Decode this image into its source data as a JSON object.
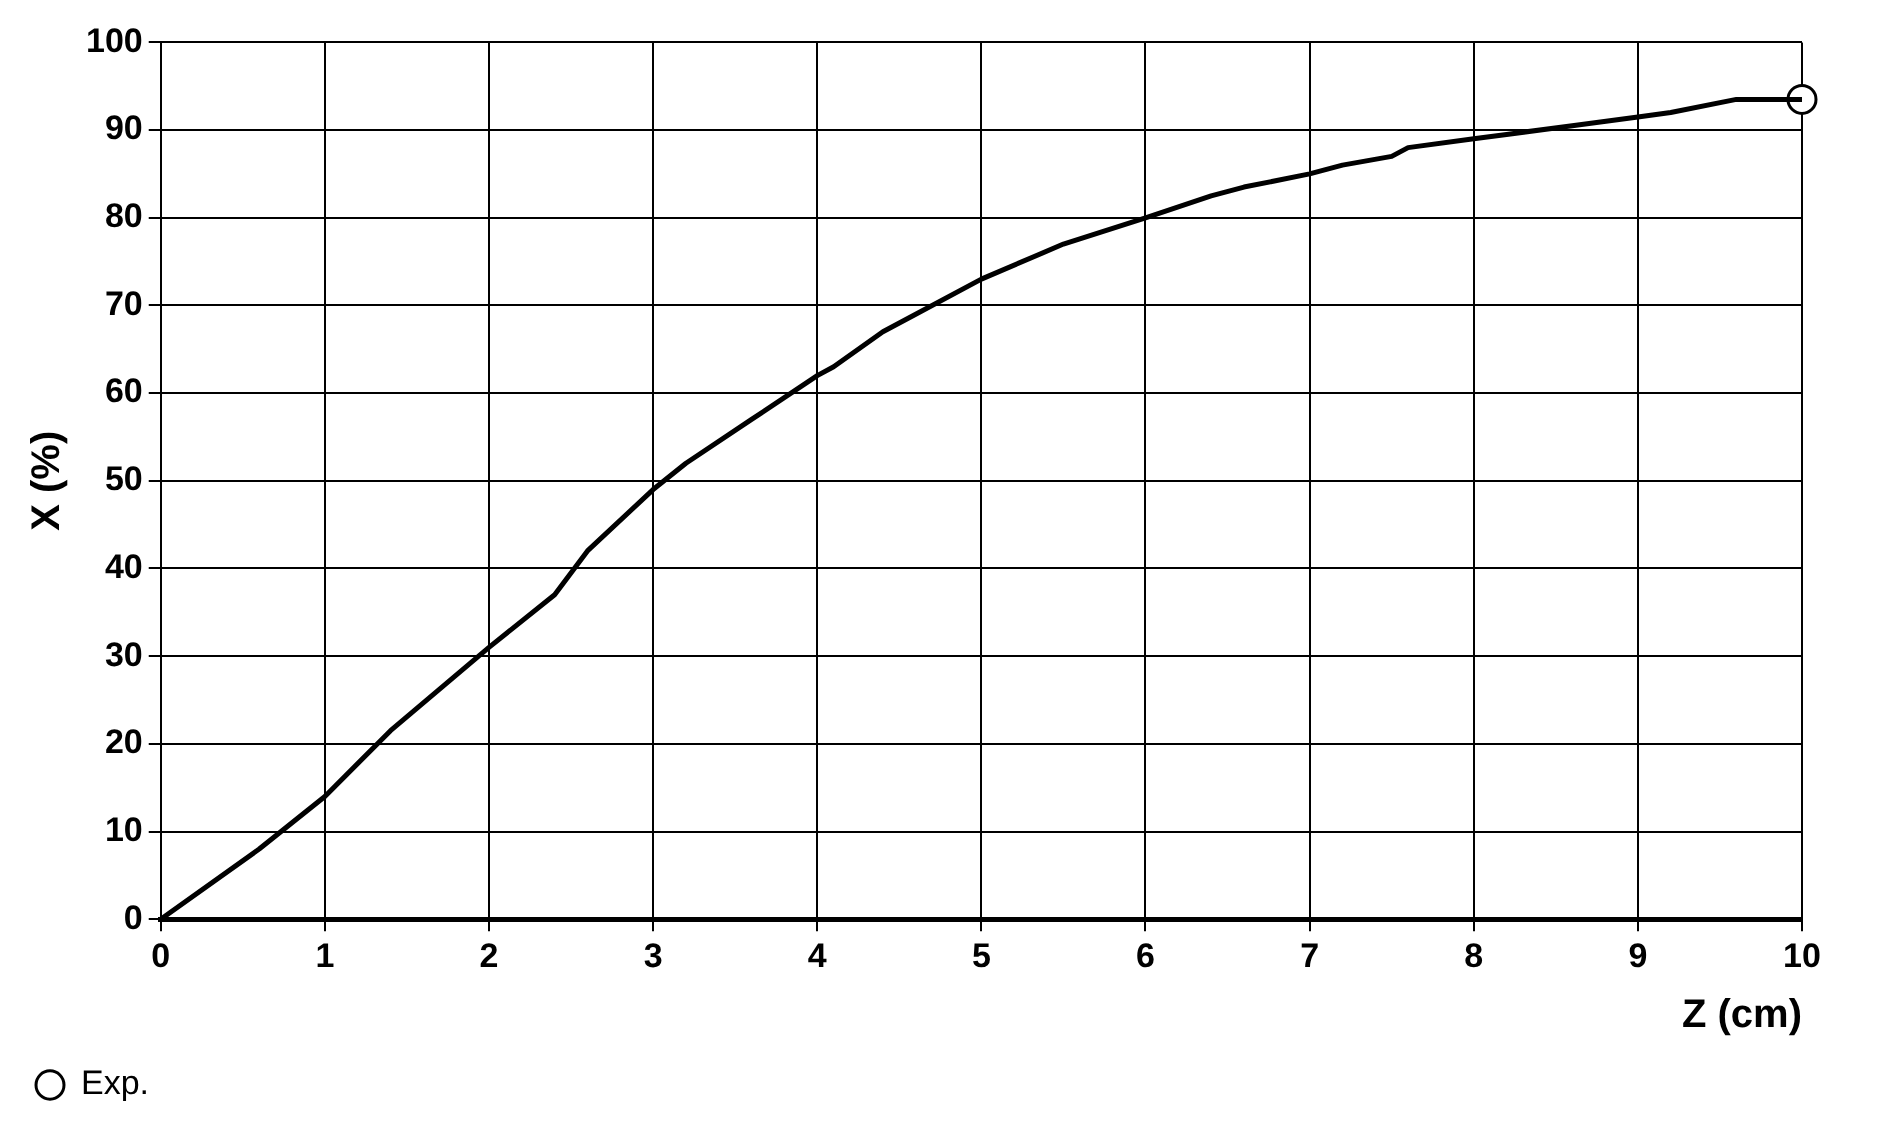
{
  "chart_data": {
    "type": "line",
    "xlabel": "Z (cm)",
    "ylabel": "X (%)",
    "xlim": [
      0,
      10
    ],
    "xticks": [
      0,
      1,
      2,
      3,
      4,
      5,
      6,
      7,
      8,
      9,
      10
    ],
    "ylim": [
      0,
      100
    ],
    "yticks": [
      0,
      10,
      20,
      30,
      40,
      50,
      60,
      70,
      80,
      90,
      100
    ],
    "grid": true,
    "legend": "bottom left",
    "series": [
      {
        "color": "#000000",
        "marker": "none",
        "x": [
          0,
          0.6,
          1,
          1.4,
          2,
          2.4,
          2.6,
          3,
          3.2,
          3.6,
          4,
          4.1,
          4.4,
          4.6,
          5,
          5.5,
          6,
          6.4,
          6.6,
          7,
          7.2,
          7.5,
          7.6,
          8,
          8.2,
          8.6,
          9,
          9.2,
          9.6,
          10
        ],
        "values": [
          0,
          8,
          14,
          21.5,
          31,
          37,
          42,
          49,
          52,
          57,
          62,
          63,
          67,
          69,
          73,
          77,
          80,
          82.5,
          83.5,
          85,
          86,
          87,
          88,
          89,
          89.5,
          90.5,
          91.5,
          92,
          93.5,
          93.5
        ]
      },
      {
        "type": "scatter",
        "name": "Exp.",
        "color": "#000000",
        "marker": "circle",
        "x": [
          10
        ],
        "values": [
          93.5
        ]
      }
    ]
  }
}
